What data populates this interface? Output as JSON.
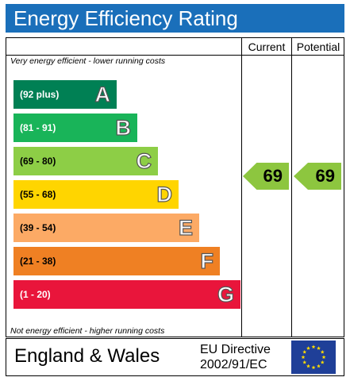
{
  "title": "Energy Efficiency Rating",
  "columns": {
    "current": "Current",
    "potential": "Potential"
  },
  "top_note": "Very energy efficient - lower running costs",
  "bottom_note": "Not energy efficient - higher running costs",
  "bands": [
    {
      "range": "(92 plus)",
      "letter": "A",
      "color": "#008054",
      "text_color": "#ffffff"
    },
    {
      "range": "(81 - 91)",
      "letter": "B",
      "color": "#19b459",
      "text_color": "#ffffff"
    },
    {
      "range": "(69 - 80)",
      "letter": "C",
      "color": "#8dce46",
      "text_color": "#000000"
    },
    {
      "range": "(55 - 68)",
      "letter": "D",
      "color": "#ffd500",
      "text_color": "#000000"
    },
    {
      "range": "(39 - 54)",
      "letter": "E",
      "color": "#fcaa65",
      "text_color": "#000000"
    },
    {
      "range": "(21 - 38)",
      "letter": "F",
      "color": "#ef8023",
      "text_color": "#000000"
    },
    {
      "range": "(1 - 20)",
      "letter": "G",
      "color": "#e9153b",
      "text_color": "#ffffff"
    }
  ],
  "current_rating": "69",
  "potential_rating": "69",
  "rating_color": "#8dc63f",
  "footer": {
    "region": "England & Wales",
    "directive_line1": "EU Directive",
    "directive_line2": "2002/91/EC"
  },
  "icons": {
    "flag": "eu-flag-icon"
  }
}
